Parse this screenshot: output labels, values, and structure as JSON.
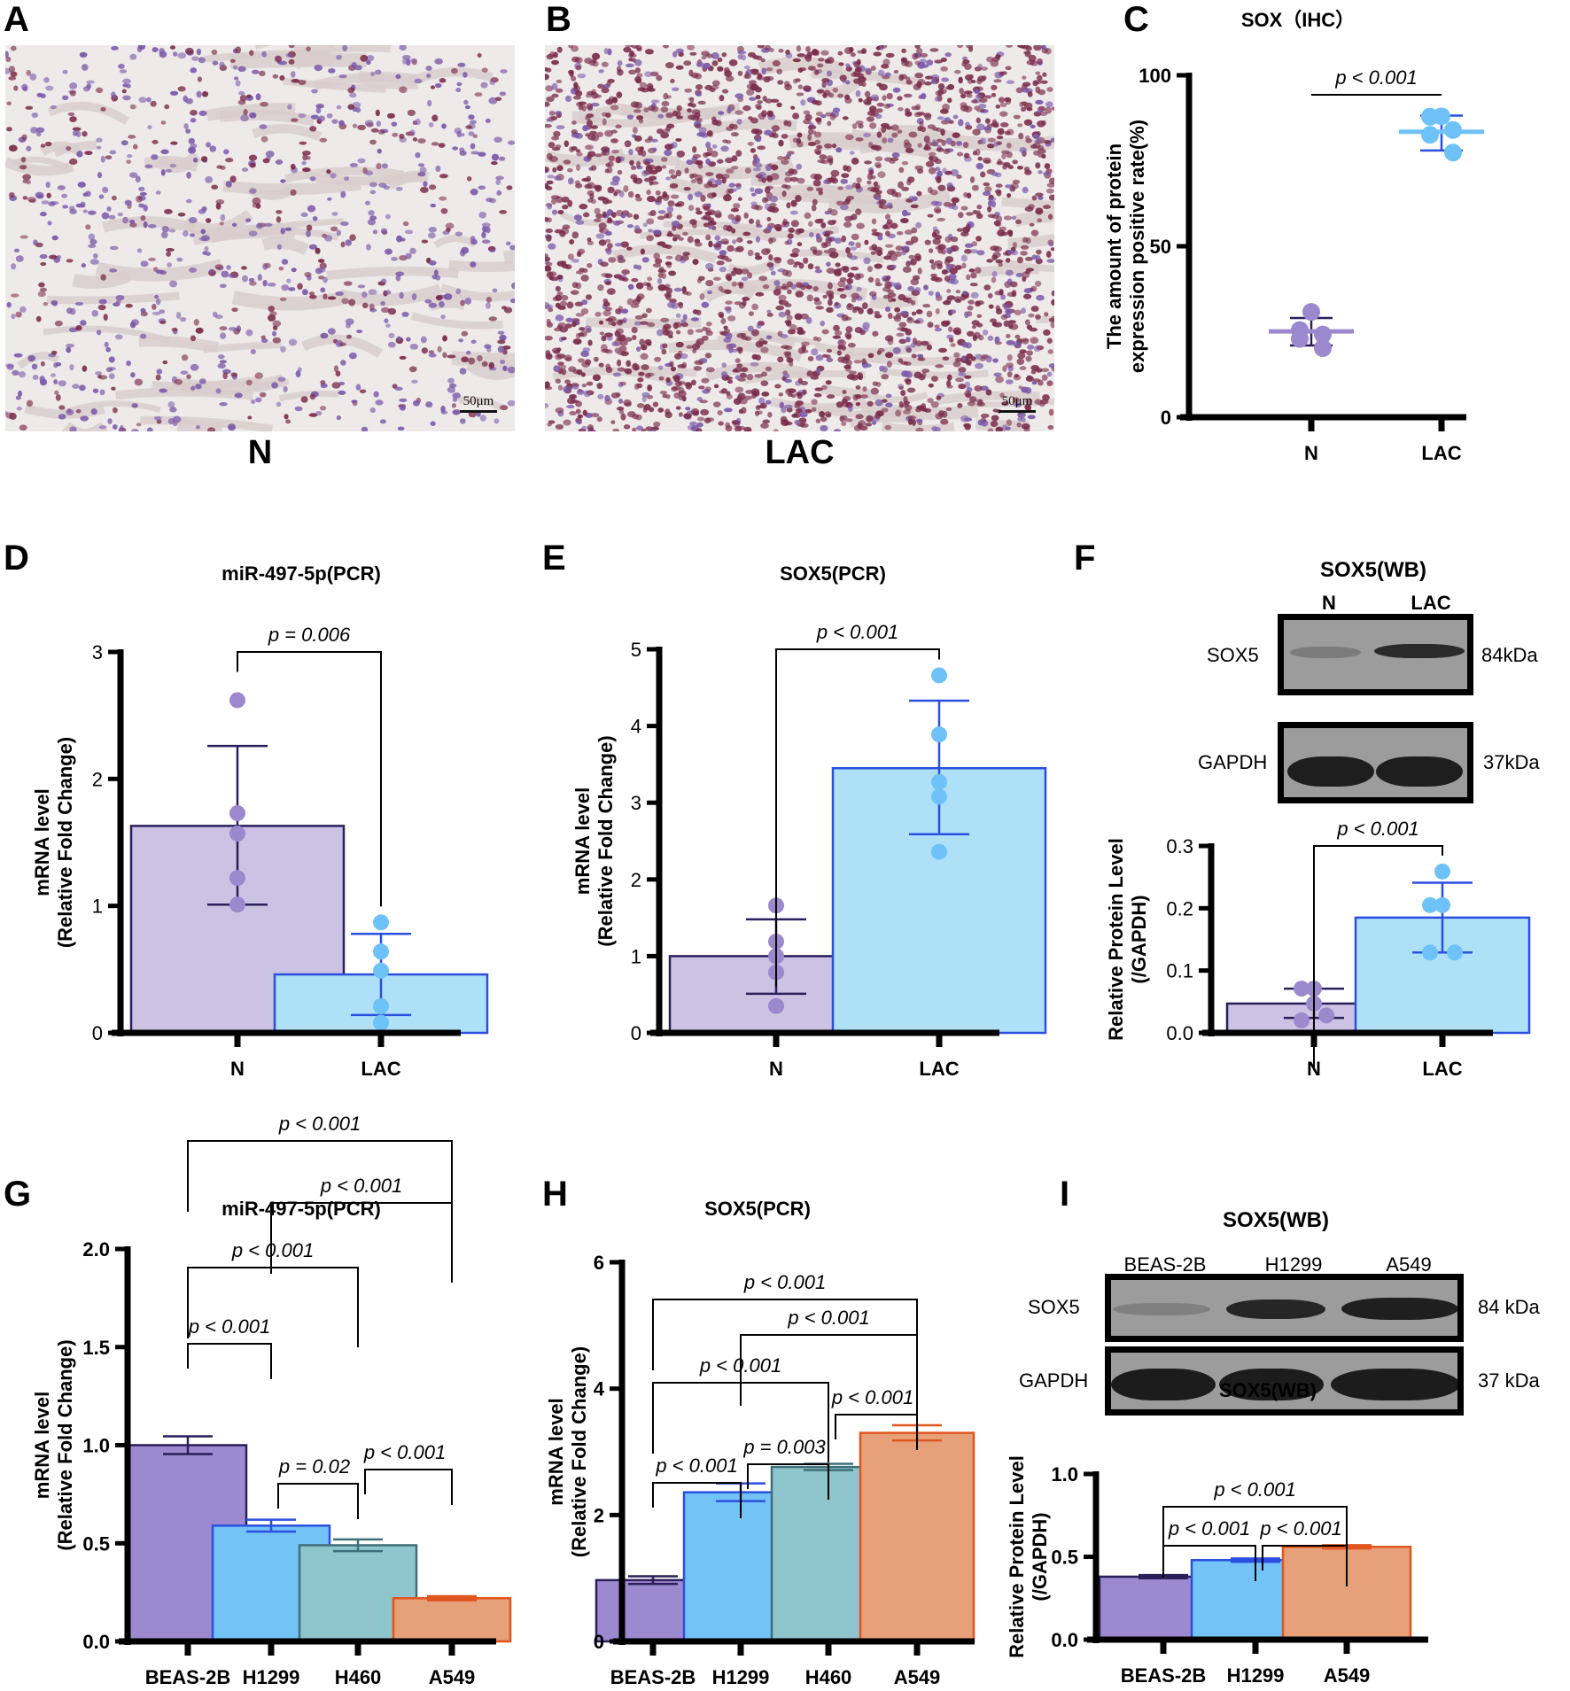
{
  "panels": {
    "A": {
      "letter": "A",
      "caption": "N",
      "scale_bar": "50μm"
    },
    "B": {
      "letter": "B",
      "caption": "LAC",
      "scale_bar": "50μm"
    },
    "C": {
      "letter": "C"
    },
    "D": {
      "letter": "D"
    },
    "E": {
      "letter": "E"
    },
    "F": {
      "letter": "F",
      "blot": {
        "title": "SOX5(WB)",
        "lanes": [
          "N",
          "LAC"
        ],
        "rows": [
          {
            "label": "SOX5",
            "size": "84kDa"
          },
          {
            "label": "GAPDH",
            "size": "37kDa"
          }
        ]
      }
    },
    "G": {
      "letter": "G"
    },
    "H": {
      "letter": "H"
    },
    "I": {
      "letter": "I",
      "blot": {
        "title": "SOX5(WB)",
        "lanes": [
          "BEAS-2B",
          "H1299",
          "A549"
        ],
        "rows": [
          {
            "label": "SOX5",
            "size": "84 kDa"
          },
          {
            "label": "GAPDH",
            "size": "37 kDa"
          }
        ],
        "overlay_text": "SOX5(WB)"
      }
    }
  },
  "colors": {
    "N_fill": "#cbc2e4",
    "N_stroke": "#2a1f5a",
    "N_dot": "#9c88cc",
    "LAC_fill": "#aee0f8",
    "LAC_stroke": "#2a4fe0",
    "LAC_dot": "#6ec2f7",
    "BEAS2B_fill": "#9d89cf",
    "BEAS2B_stroke": "#2a1f5a",
    "H1299_fill": "#74c3f7",
    "H1299_stroke": "#2a4fe0",
    "H460_fill": "#8fc5cd",
    "H460_stroke": "#3f6f78",
    "A549_fill": "#e6a07a",
    "A549_stroke": "#e0541e"
  },
  "chart_data": [
    {
      "id": "C",
      "type": "scatter",
      "title": "SOX（IHC）",
      "xlabel": "",
      "ylabel": "The amount of protein\nexpression positive rate(%)",
      "categories": [
        "N",
        "LAC"
      ],
      "ylim": [
        0,
        100
      ],
      "yticks": [
        "0",
        "50",
        "100"
      ],
      "ytick_values": [
        0,
        50,
        100
      ],
      "series": [
        {
          "name": "N",
          "mean": 25.1,
          "sd_high": 29.0,
          "sd_low": 21.0,
          "points": [
            30.8,
            25.5,
            24.2,
            22.9,
            20.2
          ]
        },
        {
          "name": "LAC",
          "mean": 83.5,
          "sd_high": 88.2,
          "sd_low": 78.0,
          "points": [
            88.0,
            87.9,
            84.0,
            82.6,
            77.4
          ]
        }
      ],
      "comparisons": [
        {
          "from": "N",
          "to": "LAC",
          "label": "p < 0.001"
        }
      ],
      "grid": false
    },
    {
      "id": "D",
      "type": "bar",
      "title": "miR-497-5p(PCR)",
      "ylabel": "mRNA level\n(Relative Fold Change)",
      "categories": [
        "N",
        "LAC"
      ],
      "ylim": [
        0,
        3
      ],
      "yticks": [
        "0",
        "1",
        "2",
        "3"
      ],
      "ytick_values": [
        0,
        1,
        2,
        3
      ],
      "series": [
        {
          "name": "N",
          "mean": 1.63,
          "sd_high": 2.26,
          "sd_low": 1.01,
          "points": [
            2.62,
            1.73,
            1.57,
            1.22,
            1.01
          ]
        },
        {
          "name": "LAC",
          "mean": 0.46,
          "sd_high": 0.78,
          "sd_low": 0.14,
          "points": [
            0.87,
            0.64,
            0.49,
            0.21,
            0.08
          ]
        }
      ],
      "comparisons": [
        {
          "from": "N",
          "to": "LAC",
          "label": "p = 0.006"
        }
      ],
      "grid": false
    },
    {
      "id": "E",
      "type": "bar",
      "title": "SOX5(PCR)",
      "ylabel": "mRNA level\n(Relative Fold Change)",
      "categories": [
        "N",
        "LAC"
      ],
      "ylim": [
        0,
        5
      ],
      "yticks": [
        "0",
        "1",
        "2",
        "3",
        "4",
        "5"
      ],
      "ytick_values": [
        0,
        1,
        2,
        3,
        4,
        5
      ],
      "series": [
        {
          "name": "N",
          "mean": 1.0,
          "sd_high": 1.48,
          "sd_low": 0.51,
          "points": [
            1.66,
            1.19,
            1.0,
            0.79,
            0.35
          ]
        },
        {
          "name": "LAC",
          "mean": 3.45,
          "sd_high": 4.33,
          "sd_low": 2.59,
          "points": [
            4.66,
            3.89,
            3.27,
            3.08,
            2.36
          ]
        }
      ],
      "comparisons": [
        {
          "from": "N",
          "to": "LAC",
          "label": "p < 0.001"
        }
      ],
      "grid": false
    },
    {
      "id": "F",
      "type": "bar",
      "title": "SOX5(WB)",
      "ylabel": "Relative Protein Level\n(/GAPDH)",
      "categories": [
        "N",
        "LAC"
      ],
      "ylim": [
        0,
        0.3
      ],
      "yticks": [
        "0.0",
        "0.1",
        "0.2",
        "0.3"
      ],
      "ytick_values": [
        0,
        0.1,
        0.2,
        0.3
      ],
      "series": [
        {
          "name": "N",
          "mean": 0.047,
          "sd_high": 0.071,
          "sd_low": 0.024,
          "points": [
            0.071,
            0.071,
            0.047,
            0.028,
            0.02
          ]
        },
        {
          "name": "LAC",
          "mean": 0.185,
          "sd_high": 0.241,
          "sd_low": 0.129,
          "points": [
            0.259,
            0.205,
            0.205,
            0.129,
            0.129
          ]
        }
      ],
      "comparisons": [
        {
          "from": "N",
          "to": "LAC",
          "label": "p < 0.001"
        }
      ],
      "grid": false
    },
    {
      "id": "G",
      "type": "bar",
      "title": "miR-497-5p(PCR)",
      "ylabel": "mRNA level\n(Relative Fold Change)",
      "categories": [
        "BEAS-2B",
        "H1299",
        "H460",
        "A549"
      ],
      "ylim": [
        0,
        2.0
      ],
      "yticks": [
        "0.0",
        "0.5",
        "1.0",
        "1.5",
        "2.0"
      ],
      "ytick_values": [
        0,
        0.5,
        1.0,
        1.5,
        2.0
      ],
      "values": [
        1.0,
        0.59,
        0.49,
        0.22
      ],
      "errors": [
        0.045,
        0.03,
        0.03,
        0.01
      ],
      "comparisons": [
        {
          "from": "BEAS-2B",
          "to": "H1299",
          "label": "p < 0.001"
        },
        {
          "from": "H1299",
          "to": "H460",
          "label": "p = 0.02"
        },
        {
          "from": "H460",
          "to": "A549",
          "label": "p < 0.001"
        },
        {
          "from": "BEAS-2B",
          "to": "H460",
          "label": "p < 0.001"
        },
        {
          "from": "H1299",
          "to": "A549",
          "label": "p < 0.001"
        },
        {
          "from": "BEAS-2B",
          "to": "A549",
          "label": "p < 0.001"
        }
      ],
      "grid": false
    },
    {
      "id": "H",
      "type": "bar",
      "title": "SOX5(PCR)",
      "ylabel": "mRNA level\n(Relative Fold Change)",
      "categories": [
        "BEAS-2B",
        "H1299",
        "H460",
        "A549"
      ],
      "ylim": [
        0,
        6
      ],
      "yticks": [
        "0",
        "2",
        "4",
        "6"
      ],
      "ytick_values": [
        0,
        2,
        4,
        6
      ],
      "values": [
        0.97,
        2.36,
        2.76,
        3.3
      ],
      "errors": [
        0.06,
        0.14,
        0.05,
        0.12
      ],
      "comparisons": [
        {
          "from": "BEAS-2B",
          "to": "H1299",
          "label": "p < 0.001"
        },
        {
          "from": "H1299",
          "to": "H460",
          "label": "p = 0.003"
        },
        {
          "from": "H460",
          "to": "A549",
          "label": "p < 0.001"
        },
        {
          "from": "BEAS-2B",
          "to": "H460",
          "label": "p < 0.001"
        },
        {
          "from": "H1299",
          "to": "A549",
          "label": "p < 0.001"
        },
        {
          "from": "BEAS-2B",
          "to": "A549",
          "label": "p < 0.001"
        }
      ],
      "grid": false
    },
    {
      "id": "I",
      "type": "bar",
      "title": "SOX5(WB)",
      "ylabel": "Relative Protein Level\n(/GAPDH)",
      "categories": [
        "BEAS-2B",
        "H1299",
        "A549"
      ],
      "ylim": [
        0,
        1.0
      ],
      "yticks": [
        "0.0",
        "0.5",
        "1.0"
      ],
      "ytick_values": [
        0,
        0.5,
        1.0
      ],
      "values": [
        0.38,
        0.48,
        0.56
      ],
      "errors": [
        0.01,
        0.01,
        0.01
      ],
      "comparisons": [
        {
          "from": "BEAS-2B",
          "to": "H1299",
          "label": "p < 0.001"
        },
        {
          "from": "H1299",
          "to": "A549",
          "label": "p < 0.001"
        },
        {
          "from": "BEAS-2B",
          "to": "A549",
          "label": "p < 0.001"
        }
      ],
      "grid": false
    }
  ]
}
